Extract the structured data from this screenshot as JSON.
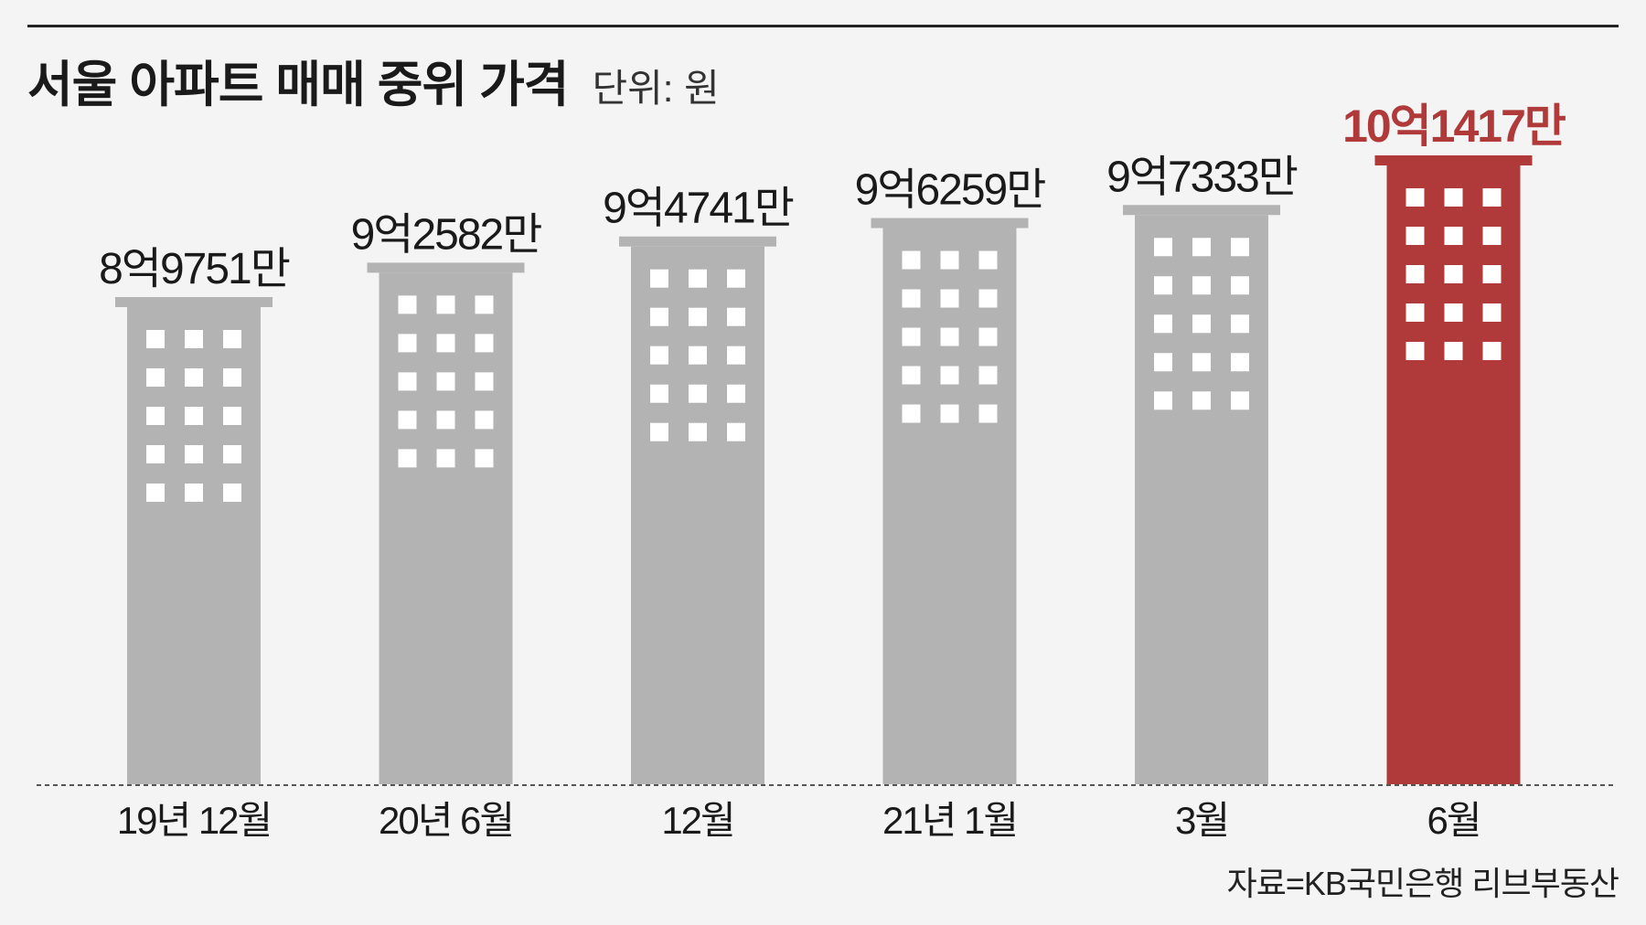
{
  "title": "서울 아파트 매매 중위 가격",
  "unit": "단위: 원",
  "source": "자료=KB국민은행 리브부동산",
  "colors": {
    "bar": "#b3b3b3",
    "highlight": "#b03a3a",
    "label": "#1a1a1a",
    "window": "#ffffff"
  },
  "chart_data": {
    "type": "bar",
    "categories": [
      "19년 12월",
      "20년 6월",
      "12월",
      "21년 1월",
      "3월",
      "6월"
    ],
    "values": [
      897510000,
      925820000,
      947410000,
      962590000,
      973330000,
      1014170000
    ],
    "data_labels": [
      "8억9751만",
      "9억2582만",
      "9억4741만",
      "9억6259만",
      "9억7333만",
      "10억1417만"
    ],
    "highlight_index": 5,
    "title": "서울 아파트 매매 중위 가격",
    "ylabel": "",
    "xlabel": "",
    "ylim": [
      0,
      1014170000
    ],
    "grid": false,
    "baseline_style": "dashed"
  }
}
